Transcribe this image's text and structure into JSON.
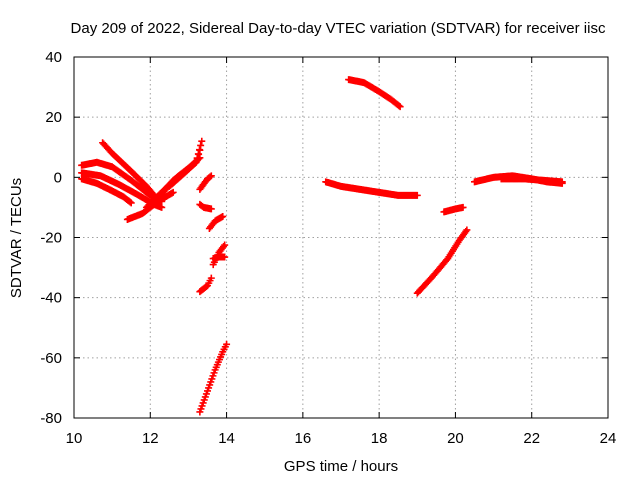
{
  "chart_data": {
    "type": "scatter",
    "title": "Day 209 of 2022, Sidereal Day-to-day VTEC variation (SDTVAR) for receiver iisc",
    "xlabel": "GPS time / hours",
    "ylabel": "SDTVAR / TECUs",
    "xlim": [
      10,
      24
    ],
    "ylim": [
      -80,
      40
    ],
    "xticks": [
      10,
      12,
      14,
      16,
      18,
      20,
      22,
      24
    ],
    "yticks": [
      -80,
      -60,
      -40,
      -20,
      0,
      20,
      40
    ],
    "grid": true,
    "marker": "+",
    "color": "#ff0000",
    "tracks": [
      [
        [
          10.75,
          11.5
        ],
        [
          11.0,
          8.0
        ],
        [
          11.5,
          2.0
        ],
        [
          11.9,
          -3.0
        ],
        [
          12.1,
          -6.0
        ]
      ],
      [
        [
          10.2,
          4.0
        ],
        [
          10.6,
          5.0
        ],
        [
          11.0,
          3.5
        ],
        [
          11.5,
          -1.0
        ],
        [
          12.0,
          -6.0
        ],
        [
          12.3,
          -8.0
        ]
      ],
      [
        [
          10.2,
          1.5
        ],
        [
          10.7,
          0.5
        ],
        [
          11.2,
          -2.5
        ],
        [
          11.7,
          -6.0
        ],
        [
          12.1,
          -9.0
        ],
        [
          12.3,
          -10.0
        ]
      ],
      [
        [
          10.2,
          -0.5
        ],
        [
          10.6,
          -2.0
        ],
        [
          11.0,
          -4.5
        ],
        [
          11.3,
          -6.5
        ],
        [
          11.5,
          -8.5
        ]
      ],
      [
        [
          11.4,
          -14.0
        ],
        [
          11.8,
          -12.0
        ],
        [
          12.2,
          -8.0
        ],
        [
          12.6,
          -5.0
        ]
      ],
      [
        [
          11.9,
          -10.0
        ],
        [
          12.3,
          -5.0
        ],
        [
          12.7,
          0.0
        ],
        [
          13.0,
          3.0
        ],
        [
          13.3,
          6.5
        ]
      ],
      [
        [
          12.3,
          -5.5
        ],
        [
          12.6,
          -1.0
        ],
        [
          12.9,
          2.0
        ],
        [
          13.2,
          5.0
        ],
        [
          13.35,
          12.0
        ]
      ],
      [
        [
          12.5,
          -3.0
        ],
        [
          12.9,
          1.5
        ],
        [
          13.2,
          5.0
        ],
        [
          13.3,
          9.0
        ]
      ],
      [
        [
          13.3,
          -4.0
        ],
        [
          13.5,
          -0.5
        ],
        [
          13.6,
          0.5
        ]
      ],
      [
        [
          13.3,
          -9.0
        ],
        [
          13.4,
          -10.0
        ],
        [
          13.6,
          -10.5
        ]
      ],
      [
        [
          13.55,
          -17.0
        ],
        [
          13.7,
          -14.5
        ],
        [
          13.9,
          -13.0
        ]
      ],
      [
        [
          13.3,
          -38.0
        ],
        [
          13.5,
          -36.0
        ],
        [
          13.6,
          -33.5
        ]
      ],
      [
        [
          13.65,
          -29.0
        ],
        [
          13.8,
          -25.0
        ],
        [
          13.95,
          -22.5
        ]
      ],
      [
        [
          13.65,
          -27.0
        ],
        [
          13.8,
          -26.5
        ],
        [
          13.95,
          -26.5
        ]
      ],
      [
        [
          13.3,
          -78.0
        ],
        [
          13.5,
          -71.0
        ],
        [
          13.7,
          -64.0
        ],
        [
          13.9,
          -58.0
        ],
        [
          14.0,
          -55.5
        ]
      ],
      [
        [
          16.6,
          -1.5
        ],
        [
          17.0,
          -3.0
        ],
        [
          17.5,
          -4.0
        ],
        [
          18.0,
          -5.0
        ],
        [
          18.5,
          -6.0
        ],
        [
          19.0,
          -6.0
        ]
      ],
      [
        [
          17.2,
          32.5
        ],
        [
          17.6,
          31.5
        ],
        [
          18.0,
          28.5
        ],
        [
          18.3,
          26.0
        ],
        [
          18.55,
          23.5
        ]
      ],
      [
        [
          19.0,
          -38.5
        ],
        [
          19.4,
          -33.0
        ],
        [
          19.8,
          -27.0
        ],
        [
          20.1,
          -21.0
        ],
        [
          20.3,
          -17.5
        ]
      ],
      [
        [
          19.7,
          -11.5
        ],
        [
          20.0,
          -10.5
        ],
        [
          20.2,
          -10.0
        ]
      ],
      [
        [
          20.5,
          -1.5
        ],
        [
          21.0,
          0.0
        ],
        [
          21.5,
          0.5
        ],
        [
          22.0,
          -0.5
        ],
        [
          22.4,
          -1.5
        ],
        [
          22.8,
          -2.0
        ]
      ],
      [
        [
          21.2,
          -0.5
        ],
        [
          21.8,
          -0.5
        ],
        [
          22.3,
          -1.0
        ],
        [
          22.8,
          -1.5
        ]
      ]
    ]
  }
}
